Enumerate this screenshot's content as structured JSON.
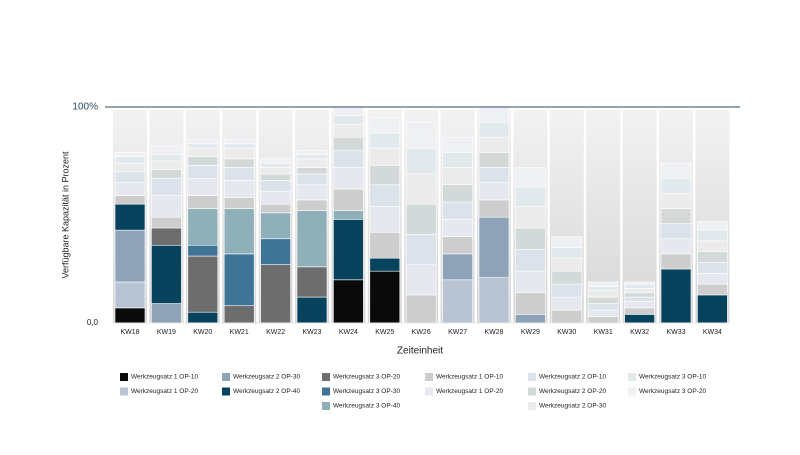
{
  "chart_data": {
    "type": "stacked_bar",
    "y_label": "Verfügbare Kapazität in Prozent",
    "x_label": "Zeiteinheit",
    "categories": [
      "KW18",
      "KW19",
      "KW20",
      "KW21",
      "KW22",
      "KW23",
      "KW24",
      "KW25",
      "KW26",
      "KW27",
      "KW28",
      "KW29",
      "KW30",
      "KW31",
      "KW32",
      "KW33",
      "KW34"
    ],
    "ylim": [
      0,
      100
    ],
    "yticks": [
      {
        "value": 0,
        "label": "0,0"
      },
      {
        "value": 100,
        "label": "100%"
      }
    ],
    "series": [
      {
        "name": "Werkzeugsatz 1 OP-10",
        "color": "#0a0a0a",
        "values": [
          7,
          0,
          0,
          0,
          0,
          0,
          20,
          24,
          0,
          0,
          0,
          0,
          0,
          0,
          0,
          0,
          0
        ]
      },
      {
        "name": "Werkzeugsatz 1 OP-20",
        "color": "#b9c4d3",
        "values": [
          12,
          0,
          0,
          0,
          0,
          0,
          0,
          0,
          0,
          20,
          21,
          0,
          0,
          0,
          0,
          0,
          0
        ]
      },
      {
        "name": "Werkzeugsatz 2 OP-30",
        "color": "#8ea2b8",
        "values": [
          24,
          9,
          0,
          0,
          0,
          0,
          0,
          0,
          0,
          12,
          28,
          4,
          0,
          0,
          0,
          0,
          0
        ]
      },
      {
        "name": "Werkzeugsatz 2 OP-40",
        "color": "#08435e",
        "values": [
          12,
          27,
          5,
          0,
          0,
          12,
          28,
          6,
          0,
          0,
          0,
          0,
          0,
          0,
          4,
          25,
          13
        ]
      },
      {
        "name": "Werkzeugsatz 3 OP-20",
        "color": "#6d6d6d",
        "values": [
          0,
          8,
          26,
          8,
          27,
          14,
          0,
          0,
          0,
          0,
          0,
          0,
          0,
          0,
          0,
          0,
          0
        ]
      },
      {
        "name": "Werkzeugsatz 3 OP-30",
        "color": "#3f7497",
        "values": [
          0,
          0,
          5,
          24,
          12,
          0,
          0,
          0,
          0,
          0,
          0,
          0,
          0,
          0,
          0,
          0,
          0
        ]
      },
      {
        "name": "Werkzeugsatz 3 OP-40",
        "color": "#8fb0b8",
        "values": [
          0,
          0,
          17,
          21,
          12,
          26,
          4,
          0,
          0,
          0,
          0,
          0,
          0,
          0,
          0,
          0,
          0
        ]
      },
      {
        "name": "Werkzeugsatz 1 OP-10",
        "color": "#cdcdcd",
        "values": [
          4,
          5,
          6,
          5,
          4,
          5,
          10,
          12,
          13,
          8,
          8,
          10,
          6,
          3,
          3,
          7,
          5
        ]
      },
      {
        "name": "Werkzeugsatz 1 OP-20",
        "color": "#e6e8ef",
        "values": [
          6,
          10,
          8,
          8,
          6,
          7,
          10,
          12,
          14,
          8,
          8,
          10,
          6,
          3,
          3,
          7,
          5
        ]
      },
      {
        "name": "Werkzeugsatz 2 OP-10",
        "color": "#dbe2ea",
        "values": [
          5,
          8,
          6,
          6,
          5,
          5,
          8,
          10,
          14,
          8,
          7,
          10,
          6,
          3,
          2,
          7,
          5
        ]
      },
      {
        "name": "Werkzeugsatz 2 OP-20",
        "color": "#d3d9d9",
        "values": [
          0,
          4,
          4,
          4,
          3,
          3,
          6,
          9,
          14,
          8,
          7,
          10,
          6,
          3,
          2,
          7,
          5
        ]
      },
      {
        "name": "Werkzeugsatz 2 OP-30",
        "color": "#ebebeb",
        "values": [
          4,
          4,
          4,
          5,
          3,
          4,
          6,
          8,
          14,
          8,
          7,
          10,
          6,
          3,
          2,
          7,
          5
        ]
      },
      {
        "name": "Werkzeugsatz 3 OP-10",
        "color": "#e2e9ed",
        "values": [
          3,
          3,
          2,
          2,
          2,
          2,
          4,
          7,
          12,
          7,
          7,
          9,
          5,
          2,
          2,
          7,
          5
        ]
      },
      {
        "name": "Werkzeugsatz 3 OP-20",
        "color": "#eef0f3",
        "values": [
          2,
          4,
          2,
          2,
          2,
          2,
          4,
          7,
          12,
          7,
          7,
          9,
          5,
          2,
          1,
          7,
          4
        ]
      }
    ]
  }
}
